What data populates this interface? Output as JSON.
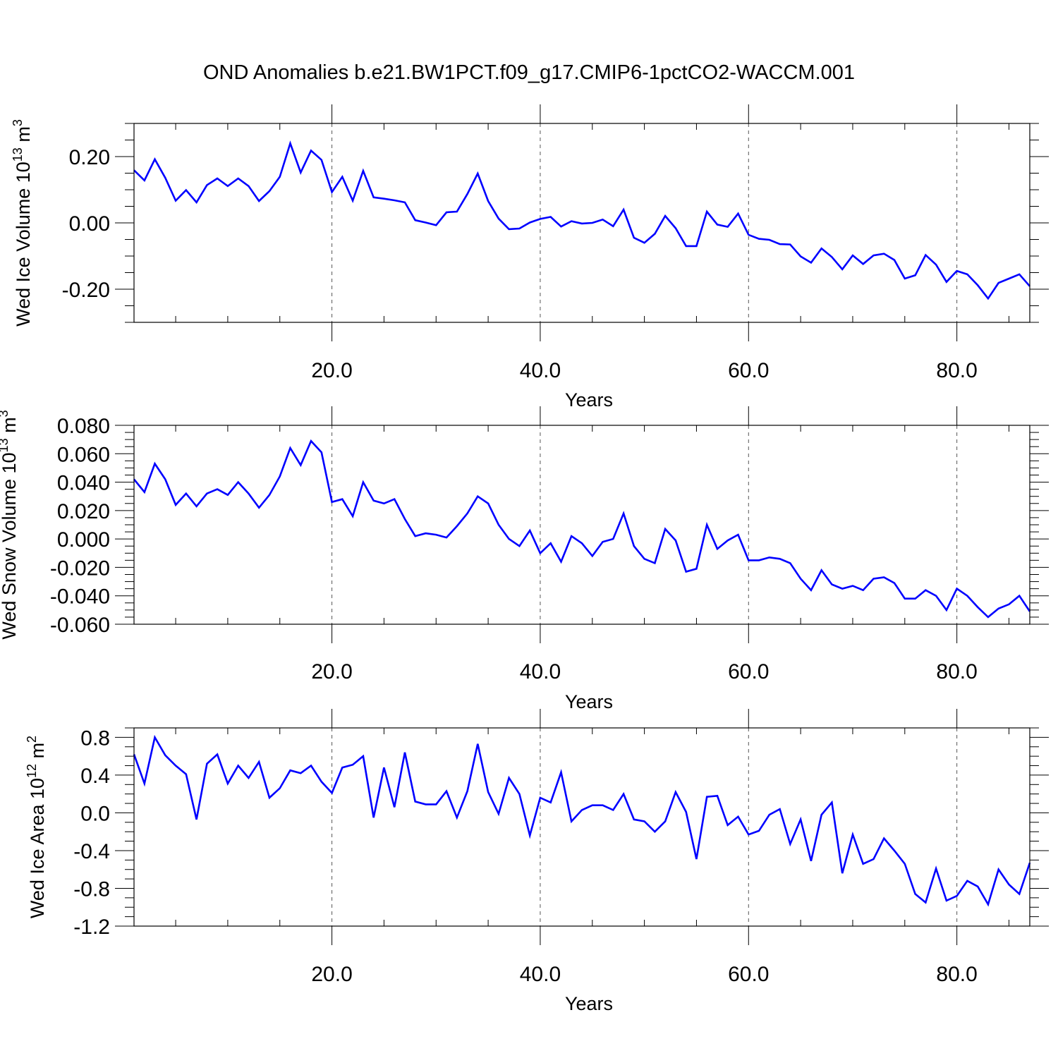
{
  "title": "OND Anomalies b.e21.BW1PCT.f09_g17.CMIP6-1pctCO2-WACCM.001",
  "line_color": "#0000ff",
  "chart_data": [
    {
      "type": "line",
      "ylabel": {
        "pre": "Wed Ice Volume 10",
        "sup": "13",
        "post": " m",
        "unit_sup": "3"
      },
      "xlabel": "Years",
      "xlim": [
        1,
        87
      ],
      "ylim": [
        -0.3,
        0.3
      ],
      "xticks": [
        20,
        40,
        60,
        80
      ],
      "xtick_labels": [
        "20.0",
        "40.0",
        "60.0",
        "80.0"
      ],
      "yticks": [
        0.2,
        0.0,
        -0.2
      ],
      "ytick_labels": [
        "0.20",
        "0.00",
        "-0.20"
      ],
      "yminor_step": 0.05,
      "grid": "x-dashed",
      "series": [
        {
          "x": [
            1,
            2,
            3,
            4,
            5,
            6,
            7,
            8,
            9,
            10,
            11,
            12,
            13,
            14,
            15,
            16,
            17,
            18,
            19,
            20,
            21,
            22,
            23,
            24,
            25,
            26,
            27,
            28,
            29,
            30,
            31,
            32,
            33,
            34,
            35,
            36,
            37,
            38,
            39,
            40,
            41,
            42,
            43,
            44,
            45,
            46,
            47,
            48,
            49,
            50,
            51,
            52,
            53,
            54,
            55,
            56,
            57,
            58,
            59,
            60,
            61,
            62,
            63,
            64,
            65,
            66,
            67,
            68,
            69,
            70,
            71,
            72,
            73,
            74,
            75,
            76,
            77,
            78,
            79,
            80,
            81,
            82,
            83,
            84,
            85,
            86,
            87
          ],
          "values": [
            0.159,
            0.128,
            0.192,
            0.136,
            0.067,
            0.099,
            0.062,
            0.114,
            0.134,
            0.111,
            0.134,
            0.111,
            0.066,
            0.096,
            0.139,
            0.24,
            0.152,
            0.218,
            0.19,
            0.093,
            0.139,
            0.067,
            0.157,
            0.077,
            0.073,
            0.068,
            0.062,
            0.008,
            0.001,
            -0.007,
            0.032,
            0.034,
            0.087,
            0.149,
            0.066,
            0.013,
            -0.019,
            -0.017,
            0.001,
            0.012,
            0.018,
            -0.011,
            0.005,
            -0.002,
            0.0,
            0.01,
            -0.01,
            0.04,
            -0.045,
            -0.06,
            -0.033,
            0.021,
            -0.016,
            -0.07,
            -0.07,
            0.034,
            -0.005,
            -0.012,
            0.028,
            -0.036,
            -0.048,
            -0.051,
            -0.064,
            -0.065,
            -0.101,
            -0.12,
            -0.077,
            -0.103,
            -0.14,
            -0.098,
            -0.124,
            -0.098,
            -0.093,
            -0.112,
            -0.168,
            -0.158,
            -0.097,
            -0.126,
            -0.178,
            -0.145,
            -0.155,
            -0.188,
            -0.228,
            -0.181,
            -0.168,
            -0.155,
            -0.191
          ]
        }
      ]
    },
    {
      "type": "line",
      "ylabel": {
        "pre": "Wed Snow Volume 10",
        "sup": "13",
        "post": " m",
        "unit_sup": "3"
      },
      "xlabel": "Years",
      "xlim": [
        1,
        87
      ],
      "ylim": [
        -0.06,
        0.08
      ],
      "xticks": [
        20,
        40,
        60,
        80
      ],
      "xtick_labels": [
        "20.0",
        "40.0",
        "60.0",
        "80.0"
      ],
      "yticks": [
        0.08,
        0.06,
        0.04,
        0.02,
        0.0,
        -0.02,
        -0.04,
        -0.06
      ],
      "ytick_labels": [
        "0.080",
        "0.060",
        "0.040",
        "0.020",
        "0.000",
        "-0.020",
        "-0.040",
        "-0.060"
      ],
      "yminor_step": 0.005,
      "grid": "x-dashed",
      "series": [
        {
          "x": [
            1,
            2,
            3,
            4,
            5,
            6,
            7,
            8,
            9,
            10,
            11,
            12,
            13,
            14,
            15,
            16,
            17,
            18,
            19,
            20,
            21,
            22,
            23,
            24,
            25,
            26,
            27,
            28,
            29,
            30,
            31,
            32,
            33,
            34,
            35,
            36,
            37,
            38,
            39,
            40,
            41,
            42,
            43,
            44,
            45,
            46,
            47,
            48,
            49,
            50,
            51,
            52,
            53,
            54,
            55,
            56,
            57,
            58,
            59,
            60,
            61,
            62,
            63,
            64,
            65,
            66,
            67,
            68,
            69,
            70,
            71,
            72,
            73,
            74,
            75,
            76,
            77,
            78,
            79,
            80,
            81,
            82,
            83,
            84,
            85,
            86,
            87
          ],
          "values": [
            0.042,
            0.033,
            0.053,
            0.042,
            0.024,
            0.032,
            0.023,
            0.032,
            0.035,
            0.031,
            0.04,
            0.032,
            0.022,
            0.031,
            0.044,
            0.064,
            0.052,
            0.069,
            0.061,
            0.026,
            0.028,
            0.016,
            0.04,
            0.027,
            0.025,
            0.028,
            0.014,
            0.002,
            0.004,
            0.003,
            0.001,
            0.009,
            0.018,
            0.03,
            0.025,
            0.01,
            0.0,
            -0.005,
            0.006,
            -0.01,
            -0.003,
            -0.016,
            0.002,
            -0.003,
            -0.012,
            -0.002,
            0.0,
            0.018,
            -0.005,
            -0.014,
            -0.017,
            0.007,
            -0.001,
            -0.023,
            -0.021,
            0.01,
            -0.007,
            -0.001,
            0.003,
            -0.015,
            -0.015,
            -0.013,
            -0.014,
            -0.017,
            -0.028,
            -0.036,
            -0.022,
            -0.032,
            -0.035,
            -0.033,
            -0.036,
            -0.028,
            -0.027,
            -0.031,
            -0.042,
            -0.042,
            -0.036,
            -0.04,
            -0.05,
            -0.035,
            -0.04,
            -0.048,
            -0.055,
            -0.049,
            -0.046,
            -0.04,
            -0.051
          ]
        }
      ]
    },
    {
      "type": "line",
      "ylabel": {
        "pre": "Wed Ice Area 10",
        "sup": "12",
        "post": " m",
        "unit_sup": "2"
      },
      "xlabel": "Years",
      "xlim": [
        1,
        87
      ],
      "ylim": [
        -1.2,
        0.9
      ],
      "xticks": [
        20,
        40,
        60,
        80
      ],
      "xtick_labels": [
        "20.0",
        "40.0",
        "60.0",
        "80.0"
      ],
      "yticks": [
        0.8,
        0.4,
        0.0,
        -0.4,
        -0.8,
        -1.2
      ],
      "ytick_labels": [
        "0.8",
        "0.4",
        "0.0",
        "-0.4",
        "-0.8",
        "-1.2"
      ],
      "yminor_step": 0.1,
      "grid": "x-dashed",
      "series": [
        {
          "x": [
            1,
            2,
            3,
            4,
            5,
            6,
            7,
            8,
            9,
            10,
            11,
            12,
            13,
            14,
            15,
            16,
            17,
            18,
            19,
            20,
            21,
            22,
            23,
            24,
            25,
            26,
            27,
            28,
            29,
            30,
            31,
            32,
            33,
            34,
            35,
            36,
            37,
            38,
            39,
            40,
            41,
            42,
            43,
            44,
            45,
            46,
            47,
            48,
            49,
            50,
            51,
            52,
            53,
            54,
            55,
            56,
            57,
            58,
            59,
            60,
            61,
            62,
            63,
            64,
            65,
            66,
            67,
            68,
            69,
            70,
            71,
            72,
            73,
            74,
            75,
            76,
            77,
            78,
            79,
            80,
            81,
            82,
            83,
            84,
            85,
            86,
            87
          ],
          "values": [
            0.62,
            0.31,
            0.8,
            0.61,
            0.5,
            0.41,
            -0.07,
            0.52,
            0.62,
            0.31,
            0.5,
            0.37,
            0.54,
            0.16,
            0.26,
            0.45,
            0.42,
            0.5,
            0.33,
            0.21,
            0.48,
            0.51,
            0.6,
            -0.05,
            0.48,
            0.06,
            0.64,
            0.12,
            0.09,
            0.09,
            0.23,
            -0.05,
            0.23,
            0.73,
            0.22,
            -0.01,
            0.37,
            0.2,
            -0.24,
            0.16,
            0.11,
            0.43,
            -0.09,
            0.03,
            0.08,
            0.08,
            0.03,
            0.2,
            -0.07,
            -0.09,
            -0.2,
            -0.09,
            0.22,
            0.01,
            -0.49,
            0.17,
            0.18,
            -0.13,
            -0.04,
            -0.23,
            -0.19,
            -0.02,
            0.04,
            -0.33,
            -0.07,
            -0.51,
            -0.02,
            0.11,
            -0.64,
            -0.23,
            -0.54,
            -0.49,
            -0.27,
            -0.4,
            -0.54,
            -0.86,
            -0.95,
            -0.59,
            -0.93,
            -0.88,
            -0.72,
            -0.78,
            -0.97,
            -0.6,
            -0.76,
            -0.86,
            -0.53
          ]
        }
      ]
    }
  ]
}
